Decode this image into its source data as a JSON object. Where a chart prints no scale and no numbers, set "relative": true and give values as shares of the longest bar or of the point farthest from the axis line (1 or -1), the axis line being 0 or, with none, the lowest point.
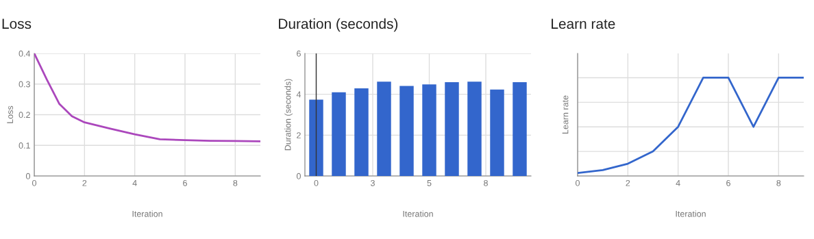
{
  "chart_data": [
    {
      "type": "line",
      "title": "Loss",
      "xlabel": "Iteration",
      "ylabel": "Loss",
      "x": [
        0,
        0.5,
        1,
        1.5,
        2,
        3,
        4,
        5,
        6,
        7,
        8,
        9
      ],
      "series": [
        {
          "color": "#ab47bc",
          "values": [
            0.4,
            0.315,
            0.235,
            0.195,
            0.175,
            0.155,
            0.136,
            0.12,
            0.117,
            0.115,
            0.114,
            0.113
          ]
        }
      ],
      "xlim": [
        0,
        9
      ],
      "xticks": [
        0,
        2,
        4,
        6,
        8
      ],
      "ylim": [
        0,
        0.4
      ],
      "yticks": [
        0,
        0.1,
        0.2,
        0.3,
        0.4
      ],
      "grid": true
    },
    {
      "type": "bar",
      "title": "Duration (seconds)",
      "xlabel": "Iteration",
      "ylabel": "Duration (seconds)",
      "x": [
        0,
        1,
        2,
        3,
        4,
        5,
        6,
        7,
        8,
        9
      ],
      "series": [
        {
          "color": "#3366cc",
          "values": [
            3.74,
            4.1,
            4.29,
            4.62,
            4.41,
            4.48,
            4.59,
            4.62,
            4.23,
            4.59
          ]
        }
      ],
      "xlim": [
        -0.5,
        9.5
      ],
      "xticks": [
        0,
        {
          "value": 2.5,
          "label": "3"
        },
        5,
        {
          "value": 7.5,
          "label": "8"
        }
      ],
      "ylim": [
        0,
        6
      ],
      "yticks": [
        0,
        2,
        4,
        6
      ],
      "grid": true,
      "ref_lines": [
        {
          "axis": "x",
          "value": 0,
          "color": "#333333"
        }
      ]
    },
    {
      "type": "line",
      "title": "Learn rate",
      "xlabel": "Iteration",
      "ylabel": "Learn rate",
      "x": [
        0,
        1,
        2,
        3,
        4,
        5,
        6,
        7,
        8,
        9
      ],
      "series": [
        {
          "color": "#3366cc",
          "values": [
            0.03,
            0.06,
            0.125,
            0.25,
            0.5,
            1,
            1,
            0.5,
            1,
            1
          ]
        }
      ],
      "relative": true,
      "xlim": [
        0,
        9
      ],
      "xticks": [
        0,
        2,
        4,
        6,
        8
      ],
      "grid": true
    }
  ]
}
